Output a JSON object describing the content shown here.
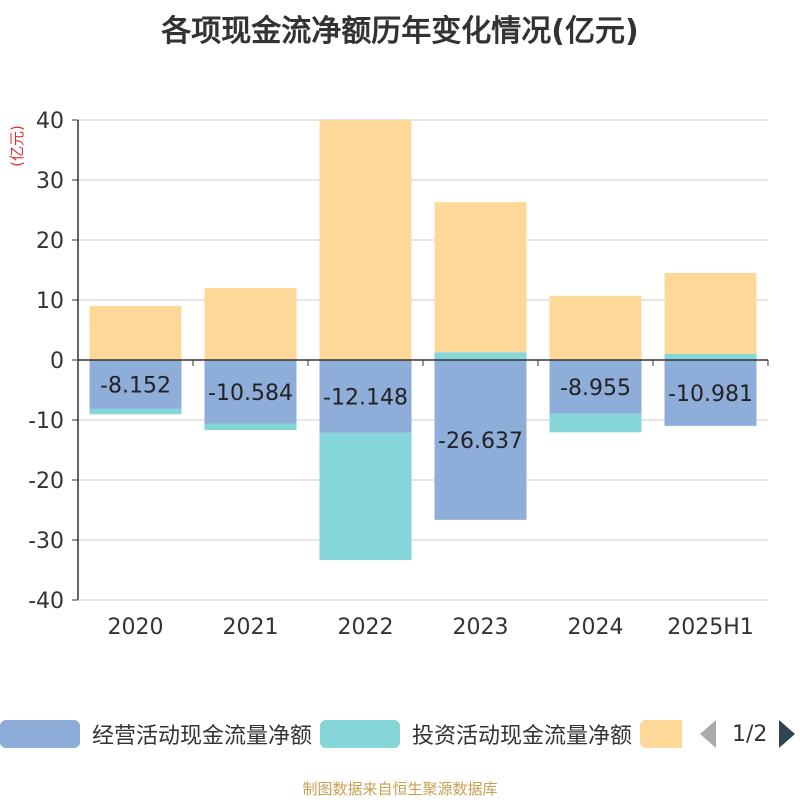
{
  "title": "各项现金流净额历年变化情况(亿元)",
  "chart_data": {
    "type": "bar",
    "stacked": true,
    "unit_label": "(亿元)",
    "categories": [
      "2020",
      "2021",
      "2022",
      "2023",
      "2024",
      "2025H1"
    ],
    "ylim": [
      -40,
      40
    ],
    "yticks": [
      "40",
      "30",
      "20",
      "10",
      "0",
      "-10",
      "-20",
      "-30",
      "-40"
    ],
    "grid": true,
    "series": [
      {
        "name": "经营活动现金流量净额",
        "color": "#8fadd9",
        "values": [
          -8.152,
          -10.584,
          -12.148,
          -26.637,
          -8.955,
          -10.981
        ],
        "labels": [
          "-8.152",
          "-10.584",
          "-12.148",
          "-26.637",
          "-8.955",
          "-10.981"
        ]
      },
      {
        "name": "投资活动现金流量净额",
        "color": "#86d5d8",
        "values": [
          -0.9,
          -1.1,
          -21.2,
          1.3,
          -3.1,
          1.0
        ]
      },
      {
        "name": "",
        "color": "#fdd898",
        "values": [
          9.0,
          12.0,
          40.0,
          25.0,
          10.7,
          13.5
        ]
      }
    ]
  },
  "legend": {
    "items": [
      "经营活动现金流量净额",
      "投资活动现金流量净额",
      ""
    ],
    "page": "1/2"
  },
  "source": "制图数据来自恒生聚源数据库"
}
